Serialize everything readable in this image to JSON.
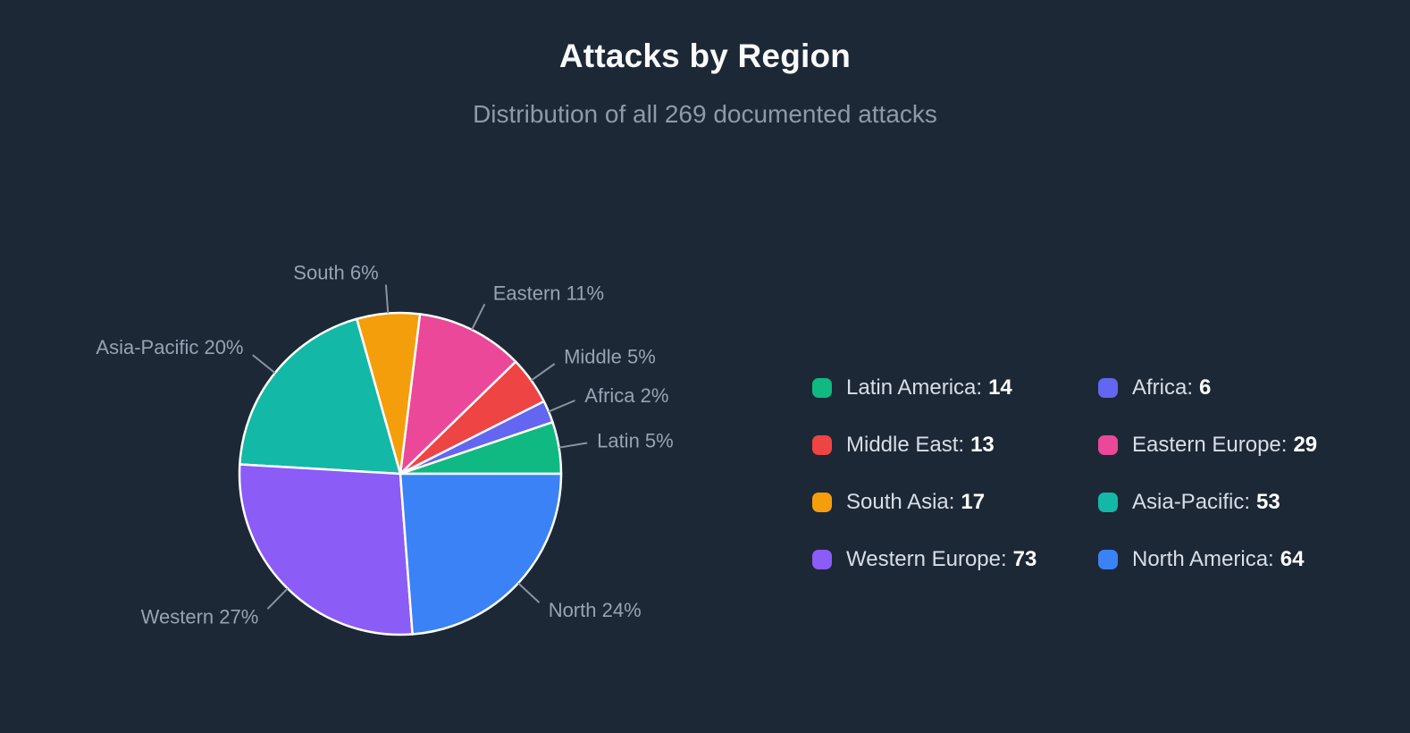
{
  "header": {
    "title": "Attacks by Region",
    "subtitle": "Distribution of all 269 documented attacks"
  },
  "colors": {
    "background": "#1d2836",
    "title": "#f8fafc",
    "subtitle": "#8e99ab",
    "callout": "#97a3b4",
    "leader_line": "#8793a5",
    "slice_border": "#ffffff",
    "legend_label": "#d7dee8",
    "legend_value": "#ffffff"
  },
  "chart_data": {
    "type": "pie",
    "title": "Attacks by Region",
    "subtitle": "Distribution of all 269 documented attacks",
    "total": 269,
    "start_angle_deg": 0,
    "direction": "counterclockwise",
    "legend_position": "right",
    "slices": [
      {
        "label": "Latin America",
        "value": 14,
        "percent": 5,
        "callout": "Latin 5%",
        "color": "#10b981"
      },
      {
        "label": "Africa",
        "value": 6,
        "percent": 2,
        "callout": "Africa 2%",
        "color": "#6366f1"
      },
      {
        "label": "Middle East",
        "value": 13,
        "percent": 5,
        "callout": "Middle 5%",
        "color": "#ef4444"
      },
      {
        "label": "Eastern Europe",
        "value": 29,
        "percent": 11,
        "callout": "Eastern 11%",
        "color": "#ec4899"
      },
      {
        "label": "South Asia",
        "value": 17,
        "percent": 6,
        "callout": "South 6%",
        "color": "#f59e0b"
      },
      {
        "label": "Asia-Pacific",
        "value": 53,
        "percent": 20,
        "callout": "Asia-Pacific 20%",
        "color": "#14b8a6"
      },
      {
        "label": "Western Europe",
        "value": 73,
        "percent": 27,
        "callout": "Western 27%",
        "color": "#8b5cf6"
      },
      {
        "label": "North America",
        "value": 64,
        "percent": 24,
        "callout": "North 24%",
        "color": "#3b82f6"
      }
    ]
  }
}
